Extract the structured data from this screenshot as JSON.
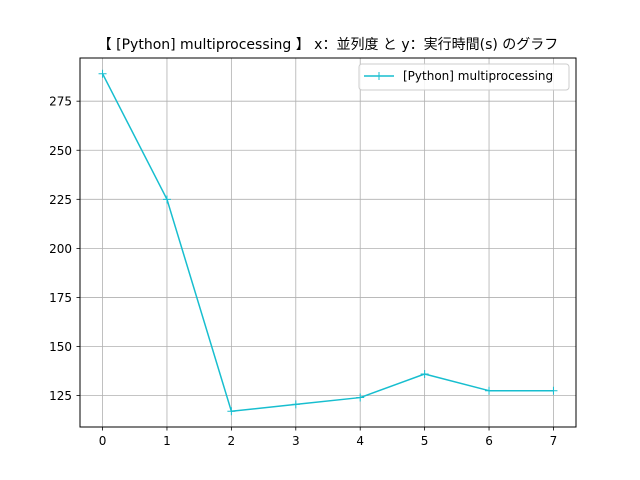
{
  "chart_data": {
    "type": "line",
    "title": "【 [Python] multiprocessing 】 x：並列度 と y：実行時間(s) のグラフ",
    "xlabel": "",
    "ylabel": "",
    "x": [
      0,
      1,
      2,
      3,
      4,
      5,
      6,
      7
    ],
    "x_ticks": [
      "0",
      "1",
      "2",
      "3",
      "4",
      "5",
      "6",
      "7"
    ],
    "y_ticks": [
      "125",
      "150",
      "175",
      "200",
      "225",
      "250",
      "275"
    ],
    "xlim": [
      -0.35,
      7.35
    ],
    "ylim": [
      109,
      297
    ],
    "grid": true,
    "legend_position": "top-right",
    "series": [
      {
        "name": "[Python] multiprocessing",
        "color": "#17becf",
        "marker": "plus",
        "values": [
          289,
          225,
          117,
          120.5,
          124,
          136,
          127.5,
          127.5
        ]
      }
    ]
  }
}
